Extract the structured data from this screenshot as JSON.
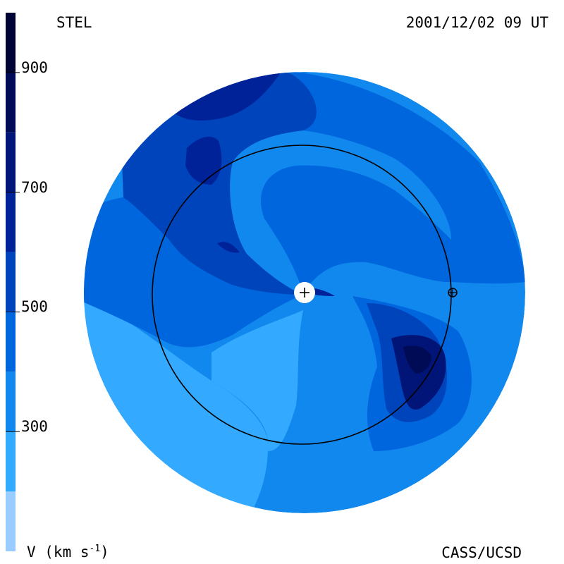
{
  "header": {
    "left_title": "STEL",
    "right_title": "2001/12/02 09 UT"
  },
  "footer": {
    "unit_label_base": "V (km s",
    "unit_label_sup": "-1",
    "unit_label_close": ")",
    "credit": "CASS/UCSD"
  },
  "chart_data": {
    "type": "heatmap",
    "title": "STEL",
    "timestamp": "2001/12/02 09 UT",
    "colorbar": {
      "label": "V (km s-1)",
      "ticks": [
        300,
        500,
        700,
        900
      ],
      "range": [
        100,
        1000
      ],
      "levels": [
        {
          "from": 100,
          "to": 200,
          "color": "#99ccff"
        },
        {
          "from": 200,
          "to": 300,
          "color": "#33aaff"
        },
        {
          "from": 300,
          "to": 400,
          "color": "#1188ee"
        },
        {
          "from": 400,
          "to": 500,
          "color": "#0066dd"
        },
        {
          "from": 500,
          "to": 600,
          "color": "#0044bb"
        },
        {
          "from": 600,
          "to": 700,
          "color": "#002299"
        },
        {
          "from": 700,
          "to": 800,
          "color": "#001577"
        },
        {
          "from": 800,
          "to": 900,
          "color": "#000b55"
        },
        {
          "from": 900,
          "to": 1000,
          "color": "#000533"
        }
      ]
    },
    "markers": [
      {
        "name": "Sun",
        "symbol": "+"
      },
      {
        "name": "Earth",
        "symbol": "⊕"
      }
    ],
    "orbit": "Earth orbit (1 AU) circle"
  }
}
